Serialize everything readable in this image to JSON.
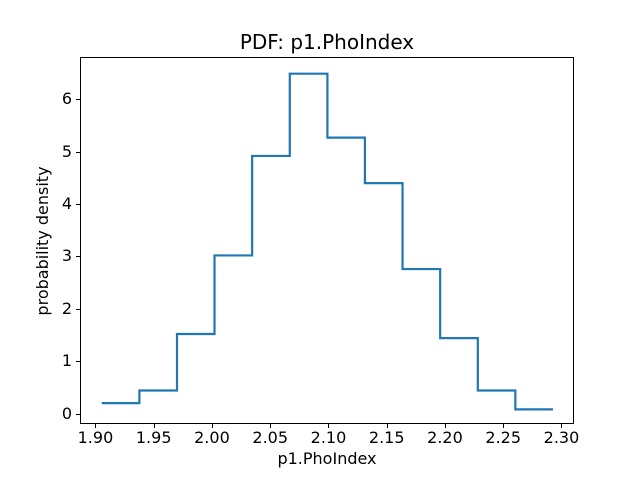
{
  "chart_data": {
    "type": "histogram-step",
    "title": "PDF: p1.PhoIndex",
    "xlabel": "p1.PhoIndex",
    "ylabel": "probability density",
    "line_color": "#1f77b4",
    "axes_edge_color": "#000000",
    "background_color": "#ffffff",
    "grid": false,
    "legend": null,
    "xlim": [
      1.8876,
      2.3099
    ],
    "ylim": [
      -0.18,
      6.79
    ],
    "xticks": {
      "values": [
        1.9,
        1.95,
        2.0,
        2.05,
        2.1,
        2.15,
        2.2,
        2.25,
        2.3
      ],
      "labels": [
        "1.90",
        "1.95",
        "2.00",
        "2.05",
        "2.10",
        "2.15",
        "2.20",
        "2.25",
        "2.30"
      ]
    },
    "yticks": {
      "values": [
        0,
        1,
        2,
        3,
        4,
        5,
        6
      ],
      "labels": [
        "0",
        "1",
        "2",
        "3",
        "4",
        "5",
        "6"
      ]
    },
    "bin_edges": [
      1.9054,
      1.9377,
      1.97,
      2.0022,
      2.0345,
      2.0668,
      2.0991,
      2.1313,
      2.1636,
      2.1959,
      2.2282,
      2.2604,
      2.2927
    ],
    "densities": [
      0.2,
      0.44,
      1.52,
      3.02,
      4.92,
      6.49,
      5.27,
      4.4,
      2.76,
      1.44,
      0.44,
      0.08
    ]
  }
}
